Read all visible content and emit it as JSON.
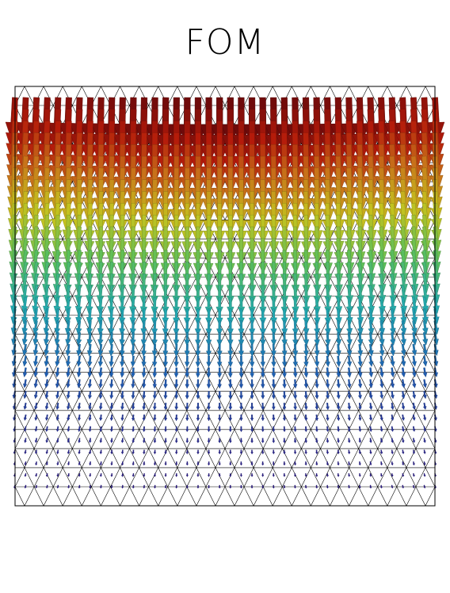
{
  "figure": {
    "title": "FOM"
  },
  "colormap": [
    "#2b1a8c",
    "#1e5fb3",
    "#21a8b0",
    "#5cbf5a",
    "#c4c21f",
    "#c8731a",
    "#b41a0a",
    "#6e0a0a"
  ],
  "mesh": {
    "columns": 22,
    "rows": 22,
    "line_color": "#000000"
  },
  "vector_field": {
    "direction": "downward",
    "columns": 40,
    "rows": 34,
    "magnitude_top": 1.0,
    "magnitude_bottom": 0.0
  }
}
